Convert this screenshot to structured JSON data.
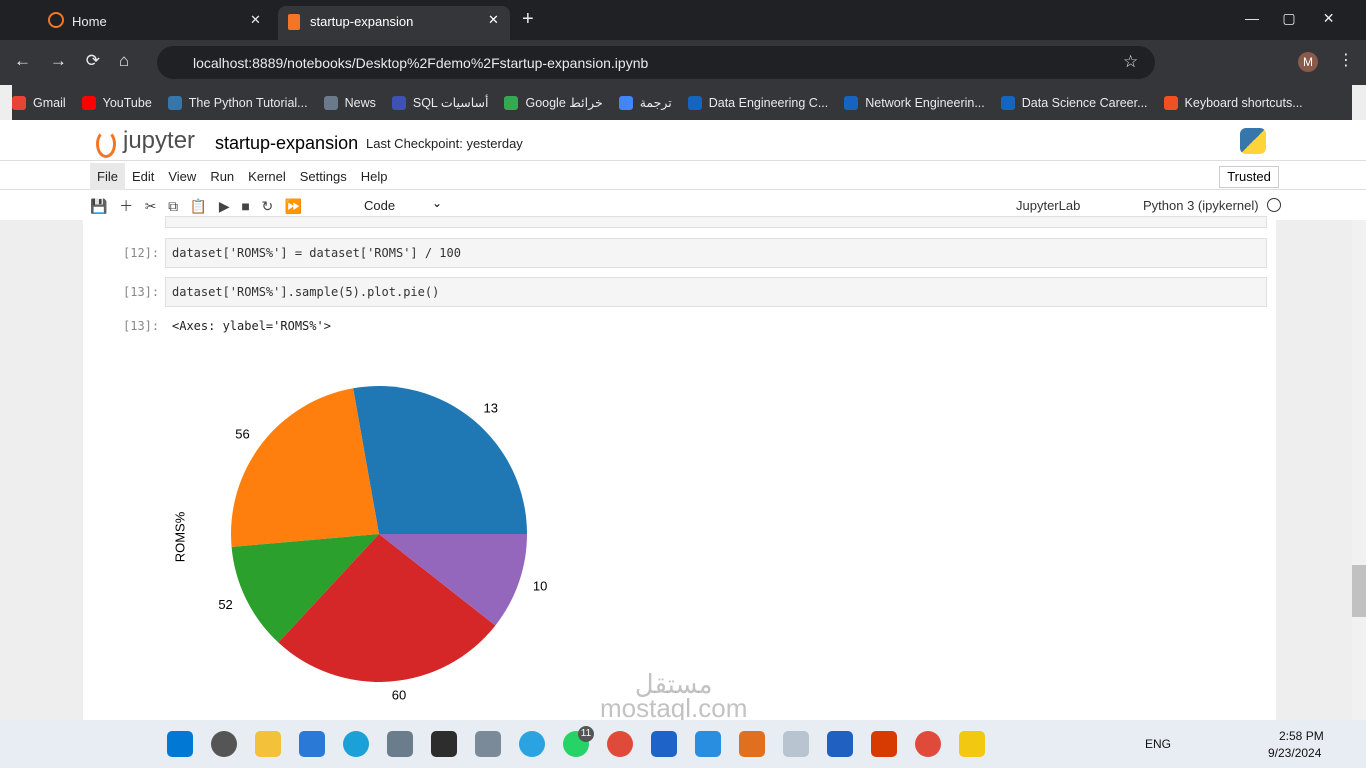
{
  "browser": {
    "tabs": [
      "Home",
      "startup-expansion"
    ],
    "url": "localhost:8889/notebooks/Desktop%2Fdemo%2Fstartup-expansion.ipynb",
    "profile": "M",
    "bookmarks": [
      "Gmail",
      "YouTube",
      "The Python Tutorial...",
      "News",
      "SQL أساسيات",
      "Google خرائط",
      "ترجمة",
      "Data Engineering C...",
      "Network Engineerin...",
      "Data Science Career...",
      "Keyboard shortcuts..."
    ]
  },
  "notebook": {
    "logo": "jupyter",
    "name": "startup-expansion",
    "checkpoint": "Last Checkpoint: yesterday",
    "menu": [
      "File",
      "Edit",
      "View",
      "Run",
      "Kernel",
      "Settings",
      "Help"
    ],
    "trusted": "Trusted",
    "cell_type": "Code",
    "jupyterlab": "JupyterLab",
    "kernel": "Python 3 (ipykernel)"
  },
  "cells": [
    {
      "prompt": "[12]:",
      "code": "dataset['ROMS%'] = dataset['ROMS'] / 100"
    },
    {
      "prompt": "[13]:",
      "code": "dataset['ROMS%'].sample(5).plot.pie()"
    }
  ],
  "output": {
    "prompt": "[13]:",
    "text": "<Axes: ylabel='ROMS%'>"
  },
  "chart_data": {
    "type": "pie",
    "ylabel": "ROMS%",
    "categories": [
      "13",
      "56",
      "52",
      "60",
      "10"
    ],
    "values": [
      27.8,
      23.6,
      11.7,
      26.3,
      10.6
    ],
    "colors": [
      "#1f77b4",
      "#ff7f0e",
      "#2ca02c",
      "#d62728",
      "#9467bd"
    ],
    "startangle": 0,
    "counterclock": true
  },
  "watermark": [
    "مستقل",
    "mostaql.com"
  ],
  "taskbar": {
    "badge": "11",
    "language": "ENG",
    "time": "2:58 PM",
    "date": "9/23/2024"
  }
}
